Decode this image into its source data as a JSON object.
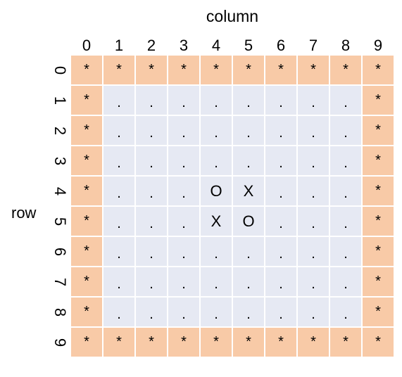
{
  "axis": {
    "column_title": "column",
    "row_title": "row"
  },
  "col_labels": [
    "0",
    "1",
    "2",
    "3",
    "4",
    "5",
    "6",
    "7",
    "8",
    "9"
  ],
  "row_labels": [
    "0",
    "1",
    "2",
    "3",
    "4",
    "5",
    "6",
    "7",
    "8",
    "9"
  ],
  "colors": {
    "border_cell": "#f8caa7",
    "inner_cell": "#e6e9f3",
    "grid_line": "#ffffff"
  },
  "grid": [
    [
      "*",
      "*",
      "*",
      "*",
      "*",
      "*",
      "*",
      "*",
      "*",
      "*"
    ],
    [
      "*",
      ".",
      ".",
      ".",
      ".",
      ".",
      ".",
      ".",
      ".",
      "*"
    ],
    [
      "*",
      ".",
      ".",
      ".",
      ".",
      ".",
      ".",
      ".",
      ".",
      "*"
    ],
    [
      "*",
      ".",
      ".",
      ".",
      ".",
      ".",
      ".",
      ".",
      ".",
      "*"
    ],
    [
      "*",
      ".",
      ".",
      ".",
      "O",
      "X",
      ".",
      ".",
      ".",
      "*"
    ],
    [
      "*",
      ".",
      ".",
      ".",
      "X",
      "O",
      ".",
      ".",
      ".",
      "*"
    ],
    [
      "*",
      ".",
      ".",
      ".",
      ".",
      ".",
      ".",
      ".",
      ".",
      "*"
    ],
    [
      "*",
      ".",
      ".",
      ".",
      ".",
      ".",
      ".",
      ".",
      ".",
      "*"
    ],
    [
      "*",
      ".",
      ".",
      ".",
      ".",
      ".",
      ".",
      ".",
      ".",
      "*"
    ],
    [
      "*",
      "*",
      "*",
      "*",
      "*",
      "*",
      "*",
      "*",
      "*",
      "*"
    ]
  ]
}
